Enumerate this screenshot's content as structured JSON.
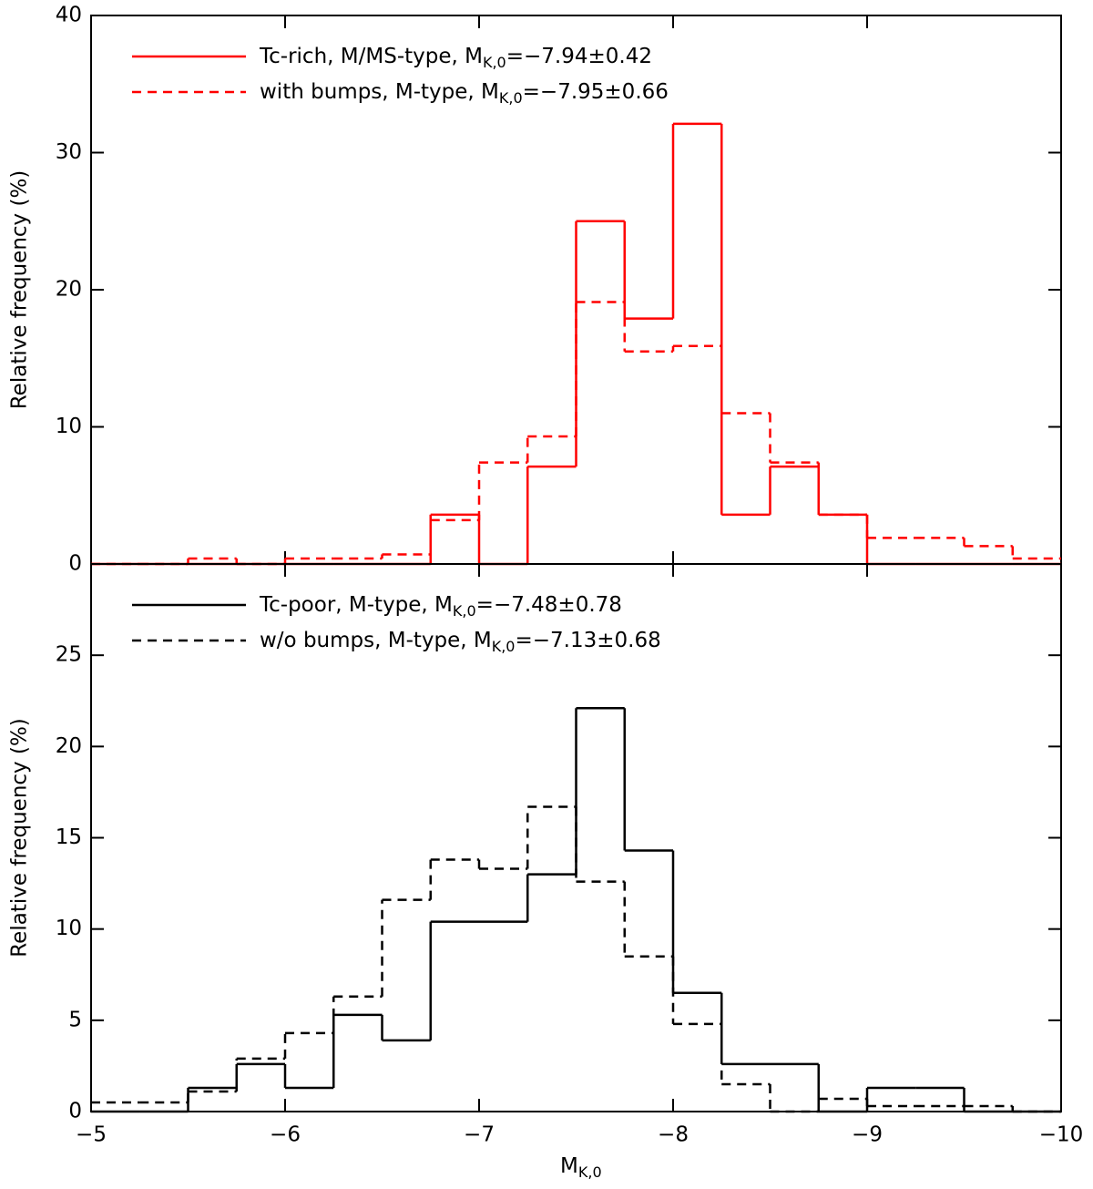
{
  "chart_data": [
    {
      "type": "histogram",
      "ylabel": "Relative frequency (%)",
      "bins": [
        -5,
        -5.25,
        -5.5,
        -5.75,
        -6,
        -6.25,
        -6.5,
        -6.75,
        -7,
        -7.25,
        -7.5,
        -7.75,
        -8,
        -8.25,
        -8.5,
        -8.75,
        -9,
        -9.25,
        -9.5,
        -9.75,
        -10
      ],
      "xlim": [
        -5,
        -10
      ],
      "xticks": [
        -5,
        -6,
        -7,
        -8,
        -9,
        -10
      ],
      "ylim": [
        0,
        40
      ],
      "yticks": [
        0,
        10,
        20,
        30,
        40
      ],
      "series": [
        {
          "name": "Tc-rich, M/MS-type, M",
          "name_sub": "K,0",
          "name_end": "=−7.94±0.42",
          "color": "#ff0000",
          "dashed": false,
          "values": [
            0,
            0,
            0,
            0,
            0,
            0,
            0,
            3.6,
            0,
            7.1,
            25,
            17.9,
            32.1,
            3.6,
            7.1,
            3.6,
            0,
            0,
            0,
            0
          ]
        },
        {
          "name": "with bumps, M-type, M",
          "name_sub": "K,0",
          "name_end": "=−7.95±0.66",
          "color": "#ff0000",
          "dashed": true,
          "values": [
            0,
            0,
            0.4,
            0,
            0.4,
            0.4,
            0.7,
            3.2,
            7.4,
            9.3,
            19.1,
            15.5,
            15.9,
            11.0,
            7.4,
            3.6,
            1.9,
            1.9,
            1.3,
            0.4
          ]
        }
      ]
    },
    {
      "type": "histogram",
      "ylabel": "Relative frequency (%)",
      "xlabel": "M",
      "xlabel_sub": "K,0",
      "bins": [
        -5,
        -5.25,
        -5.5,
        -5.75,
        -6,
        -6.25,
        -6.5,
        -6.75,
        -7,
        -7.25,
        -7.5,
        -7.75,
        -8,
        -8.25,
        -8.5,
        -8.75,
        -9,
        -9.25,
        -9.5,
        -9.75,
        -10
      ],
      "xlim": [
        -5,
        -10
      ],
      "xticks": [
        {
          "value": -5,
          "label": "−5"
        },
        {
          "value": -6,
          "label": "−6"
        },
        {
          "value": -7,
          "label": "−7"
        },
        {
          "value": -8,
          "label": "−8"
        },
        {
          "value": -9,
          "label": "−9"
        },
        {
          "value": -10,
          "label": "−10"
        }
      ],
      "ylim": [
        0,
        30
      ],
      "yticks": [
        0,
        5,
        10,
        15,
        20,
        25
      ],
      "series": [
        {
          "name": "Tc-poor, M-type, M",
          "name_sub": "K,0",
          "name_end": "=−7.48±0.78",
          "color": "#000000",
          "dashed": false,
          "values": [
            0,
            0,
            1.3,
            2.6,
            1.3,
            5.3,
            3.9,
            10.4,
            10.4,
            13.0,
            22.1,
            14.3,
            6.5,
            2.6,
            2.6,
            0,
            1.3,
            1.3,
            0,
            0
          ]
        },
        {
          "name": "w/o bumps, M-type, M",
          "name_sub": "K,0",
          "name_end": "=−7.13±0.68",
          "color": "#000000",
          "dashed": true,
          "values": [
            0.5,
            0.5,
            1.1,
            2.9,
            4.3,
            6.3,
            11.6,
            13.8,
            13.3,
            16.7,
            12.6,
            8.5,
            4.8,
            1.5,
            0,
            0.7,
            0.3,
            0.3,
            0.3,
            0
          ]
        }
      ]
    }
  ]
}
